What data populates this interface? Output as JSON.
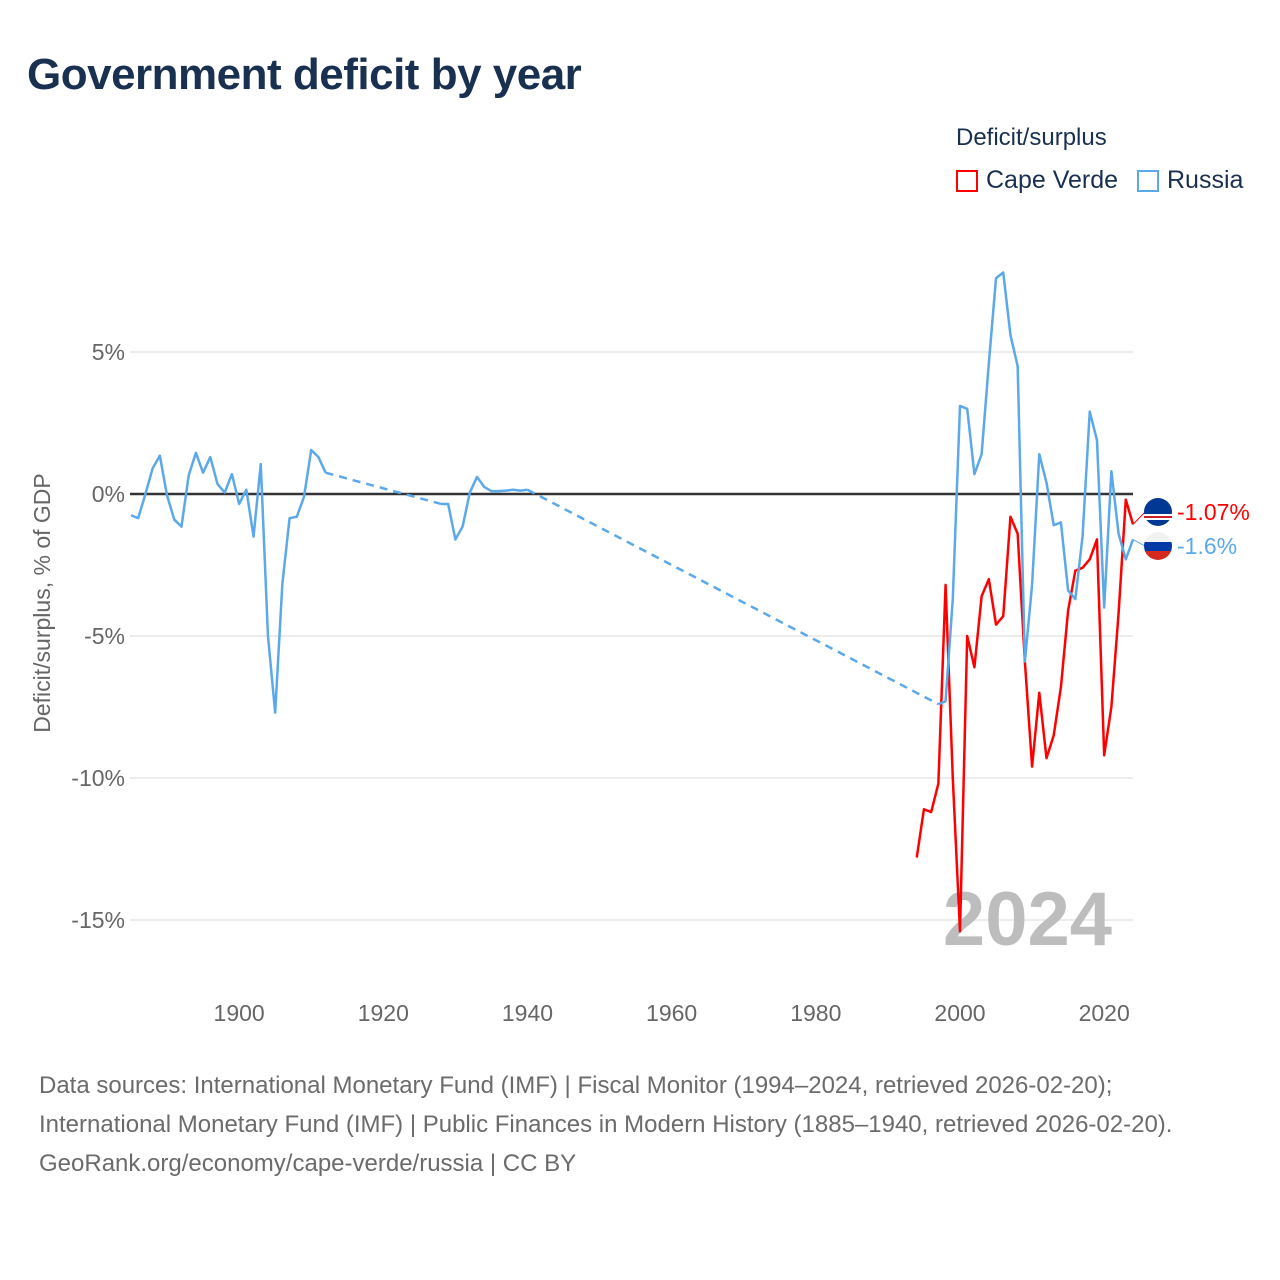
{
  "title": "Government deficit by year",
  "legend": {
    "title": "Deficit/surplus",
    "items": [
      {
        "name": "Cape Verde",
        "color": "#ff0000"
      },
      {
        "name": "Russia",
        "color": "#5ba8ea"
      }
    ]
  },
  "footer": {
    "sources": "Data sources: International Monetary Fund (IMF) | Fiscal Monitor (1994–2024, retrieved 2026-02-20); International Monetary Fund (IMF) | Public Finances in Modern History (1885–1940, retrieved 2026-02-20).",
    "credit": "GeoRank.org/economy/cape-verde/russia | CC BY"
  },
  "chart_data": {
    "type": "line",
    "title": "Government deficit by year",
    "ylabel": "Deficit/surplus, % of GDP",
    "xlabel": "",
    "xlim": [
      1885,
      2024
    ],
    "ylim": [
      -16.5,
      8.5
    ],
    "x_ticks": [
      1900,
      1920,
      1940,
      1960,
      1980,
      2000,
      2020
    ],
    "y_ticks": [
      {
        "v": 5,
        "label": "5%"
      },
      {
        "v": 0,
        "label": "0%"
      },
      {
        "v": -5,
        "label": "-5%"
      },
      {
        "v": -10,
        "label": "-10%"
      },
      {
        "v": -15,
        "label": "-15%"
      }
    ],
    "year_watermark": "2024",
    "grid": true,
    "series": [
      {
        "name": "Cape Verde",
        "color": "#ff0000",
        "end_label": "-1.07%",
        "points": [
          [
            1994,
            -12.8
          ],
          [
            1995,
            -11.1
          ],
          [
            1996,
            -11.2
          ],
          [
            1997,
            -10.2
          ],
          [
            1998,
            -3.2
          ],
          [
            1999,
            -10.0
          ],
          [
            2000,
            -15.4
          ],
          [
            2001,
            -5.0
          ],
          [
            2002,
            -6.1
          ],
          [
            2003,
            -3.6
          ],
          [
            2004,
            -3.0
          ],
          [
            2005,
            -4.6
          ],
          [
            2006,
            -4.3
          ],
          [
            2007,
            -0.8
          ],
          [
            2008,
            -1.4
          ],
          [
            2009,
            -5.9
          ],
          [
            2010,
            -9.6
          ],
          [
            2011,
            -7.0
          ],
          [
            2012,
            -9.3
          ],
          [
            2013,
            -8.5
          ],
          [
            2014,
            -6.8
          ],
          [
            2015,
            -4.1
          ],
          [
            2016,
            -2.7
          ],
          [
            2017,
            -2.6
          ],
          [
            2018,
            -2.3
          ],
          [
            2019,
            -1.6
          ],
          [
            2020,
            -9.2
          ],
          [
            2021,
            -7.5
          ],
          [
            2022,
            -4.2
          ],
          [
            2023,
            -0.2
          ],
          [
            2024,
            -1.07
          ]
        ]
      },
      {
        "name": "Russia",
        "color": "#5ba8ea",
        "end_label": "-1.6%",
        "points": [
          [
            1885,
            -0.75
          ],
          [
            1886,
            -0.85
          ],
          [
            1887,
            0.0
          ],
          [
            1888,
            0.9
          ],
          [
            1889,
            1.35
          ],
          [
            1890,
            -0.05
          ],
          [
            1891,
            -0.9
          ],
          [
            1892,
            -1.15
          ],
          [
            1893,
            0.65
          ],
          [
            1894,
            1.45
          ],
          [
            1895,
            0.75
          ],
          [
            1896,
            1.3
          ],
          [
            1897,
            0.35
          ],
          [
            1898,
            0.05
          ],
          [
            1899,
            0.7
          ],
          [
            1900,
            -0.35
          ],
          [
            1901,
            0.15
          ],
          [
            1902,
            -1.5
          ],
          [
            1903,
            1.05
          ],
          [
            1904,
            -5.0
          ],
          [
            1905,
            -7.7
          ],
          [
            1906,
            -3.15
          ],
          [
            1907,
            -0.85
          ],
          [
            1908,
            -0.8
          ],
          [
            1909,
            -0.1
          ],
          [
            1910,
            1.55
          ],
          [
            1911,
            1.3
          ],
          [
            1912,
            0.75
          ],
          [
            1928,
            -0.35
          ],
          [
            1929,
            -0.35
          ],
          [
            1930,
            -1.6
          ],
          [
            1931,
            -1.15
          ],
          [
            1932,
            0.05
          ],
          [
            1933,
            0.6
          ],
          [
            1934,
            0.25
          ],
          [
            1935,
            0.1
          ],
          [
            1936,
            0.1
          ],
          [
            1937,
            0.12
          ],
          [
            1938,
            0.15
          ],
          [
            1939,
            0.12
          ],
          [
            1940,
            0.15
          ],
          [
            1997,
            -7.4
          ],
          [
            1998,
            -7.3
          ],
          [
            1999,
            -3.7
          ],
          [
            2000,
            3.1
          ],
          [
            2001,
            3.0
          ],
          [
            2002,
            0.7
          ],
          [
            2003,
            1.4
          ],
          [
            2004,
            4.6
          ],
          [
            2005,
            7.6
          ],
          [
            2006,
            7.8
          ],
          [
            2007,
            5.6
          ],
          [
            2008,
            4.5
          ],
          [
            2009,
            -5.9
          ],
          [
            2010,
            -3.2
          ],
          [
            2011,
            1.4
          ],
          [
            2012,
            0.4
          ],
          [
            2013,
            -1.1
          ],
          [
            2014,
            -1.0
          ],
          [
            2015,
            -3.4
          ],
          [
            2016,
            -3.7
          ],
          [
            2017,
            -1.5
          ],
          [
            2018,
            2.9
          ],
          [
            2019,
            1.9
          ],
          [
            2020,
            -4.0
          ],
          [
            2021,
            0.8
          ],
          [
            2022,
            -1.4
          ],
          [
            2023,
            -2.3
          ],
          [
            2024,
            -1.6
          ]
        ]
      }
    ]
  }
}
